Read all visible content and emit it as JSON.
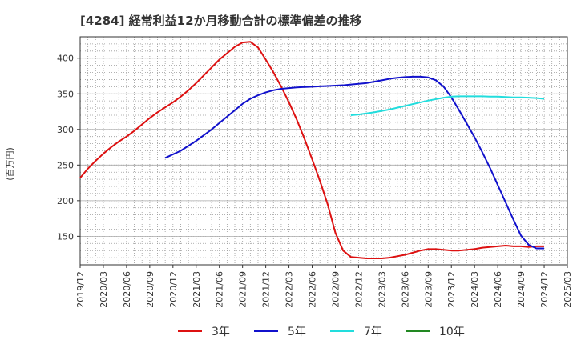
{
  "chart_data": {
    "type": "line",
    "title": "[4284]  経常利益12か月移動合計の標準偏差の推移",
    "ylabel": "(百万円)",
    "xlabel": "",
    "ylim": [
      110,
      430
    ],
    "yticks": [
      150,
      200,
      250,
      300,
      350,
      400
    ],
    "xticks": [
      "2019/12",
      "2020/03",
      "2020/06",
      "2020/09",
      "2020/12",
      "2021/03",
      "2021/06",
      "2021/09",
      "2021/12",
      "2022/03",
      "2022/06",
      "2022/09",
      "2022/12",
      "2023/03",
      "2023/06",
      "2023/09",
      "2023/12",
      "2024/03",
      "2024/06",
      "2024/09",
      "2024/12",
      "2025/03"
    ],
    "grid": true,
    "legend_position": "bottom",
    "series": [
      {
        "name": "3年",
        "color": "#dd1111",
        "points": [
          [
            "2019/12",
            232
          ],
          [
            "2020/01",
            245
          ],
          [
            "2020/02",
            256
          ],
          [
            "2020/03",
            266
          ],
          [
            "2020/04",
            275
          ],
          [
            "2020/05",
            283
          ],
          [
            "2020/06",
            290
          ],
          [
            "2020/07",
            298
          ],
          [
            "2020/08",
            307
          ],
          [
            "2020/09",
            316
          ],
          [
            "2020/10",
            324
          ],
          [
            "2020/11",
            331
          ],
          [
            "2020/12",
            338
          ],
          [
            "2021/01",
            346
          ],
          [
            "2021/02",
            355
          ],
          [
            "2021/03",
            365
          ],
          [
            "2021/04",
            376
          ],
          [
            "2021/05",
            387
          ],
          [
            "2021/06",
            398
          ],
          [
            "2021/07",
            407
          ],
          [
            "2021/08",
            416
          ],
          [
            "2021/09",
            422
          ],
          [
            "2021/10",
            423
          ],
          [
            "2021/11",
            415
          ],
          [
            "2021/12",
            398
          ],
          [
            "2022/01",
            380
          ],
          [
            "2022/02",
            360
          ],
          [
            "2022/03",
            338
          ],
          [
            "2022/04",
            314
          ],
          [
            "2022/05",
            287
          ],
          [
            "2022/06",
            258
          ],
          [
            "2022/07",
            228
          ],
          [
            "2022/08",
            195
          ],
          [
            "2022/09",
            155
          ],
          [
            "2022/10",
            130
          ],
          [
            "2022/11",
            121
          ],
          [
            "2022/12",
            120
          ],
          [
            "2023/01",
            119
          ],
          [
            "2023/02",
            119
          ],
          [
            "2023/03",
            119
          ],
          [
            "2023/04",
            120
          ],
          [
            "2023/05",
            122
          ],
          [
            "2023/06",
            124
          ],
          [
            "2023/07",
            127
          ],
          [
            "2023/08",
            130
          ],
          [
            "2023/09",
            132
          ],
          [
            "2023/10",
            132
          ],
          [
            "2023/11",
            131
          ],
          [
            "2023/12",
            130
          ],
          [
            "2024/01",
            130
          ],
          [
            "2024/02",
            131
          ],
          [
            "2024/03",
            132
          ],
          [
            "2024/04",
            134
          ],
          [
            "2024/05",
            135
          ],
          [
            "2024/06",
            136
          ],
          [
            "2024/07",
            137
          ],
          [
            "2024/08",
            136
          ],
          [
            "2024/09",
            136
          ],
          [
            "2024/10",
            135
          ],
          [
            "2024/11",
            136
          ],
          [
            "2024/12",
            136
          ]
        ]
      },
      {
        "name": "5年",
        "color": "#1111cc",
        "points": [
          [
            "2020/11",
            260
          ],
          [
            "2020/12",
            265
          ],
          [
            "2021/01",
            270
          ],
          [
            "2021/02",
            277
          ],
          [
            "2021/03",
            284
          ],
          [
            "2021/04",
            292
          ],
          [
            "2021/05",
            300
          ],
          [
            "2021/06",
            309
          ],
          [
            "2021/07",
            318
          ],
          [
            "2021/08",
            327
          ],
          [
            "2021/09",
            336
          ],
          [
            "2021/10",
            343
          ],
          [
            "2021/11",
            348
          ],
          [
            "2021/12",
            352
          ],
          [
            "2022/01",
            355
          ],
          [
            "2022/02",
            357
          ],
          [
            "2022/03",
            358
          ],
          [
            "2022/04",
            359
          ],
          [
            "2022/05",
            359.5
          ],
          [
            "2022/06",
            360
          ],
          [
            "2022/07",
            360.5
          ],
          [
            "2022/08",
            361
          ],
          [
            "2022/09",
            361.5
          ],
          [
            "2022/10",
            362
          ],
          [
            "2022/11",
            363
          ],
          [
            "2022/12",
            364
          ],
          [
            "2023/01",
            365
          ],
          [
            "2023/02",
            367
          ],
          [
            "2023/03",
            369
          ],
          [
            "2023/04",
            371
          ],
          [
            "2023/05",
            372.5
          ],
          [
            "2023/06",
            373.5
          ],
          [
            "2023/07",
            374
          ],
          [
            "2023/08",
            374
          ],
          [
            "2023/09",
            373
          ],
          [
            "2023/10",
            369
          ],
          [
            "2023/11",
            360
          ],
          [
            "2023/12",
            345
          ],
          [
            "2024/01",
            327
          ],
          [
            "2024/02",
            308
          ],
          [
            "2024/03",
            289
          ],
          [
            "2024/04",
            268
          ],
          [
            "2024/05",
            246
          ],
          [
            "2024/06",
            222
          ],
          [
            "2024/07",
            198
          ],
          [
            "2024/08",
            174
          ],
          [
            "2024/09",
            151
          ],
          [
            "2024/10",
            138
          ],
          [
            "2024/11",
            133
          ],
          [
            "2024/12",
            133
          ]
        ]
      },
      {
        "name": "7年",
        "color": "#22dddd",
        "points": [
          [
            "2022/11",
            320
          ],
          [
            "2022/12",
            321
          ],
          [
            "2023/01",
            322.5
          ],
          [
            "2023/02",
            324
          ],
          [
            "2023/03",
            326
          ],
          [
            "2023/04",
            328
          ],
          [
            "2023/05",
            330.5
          ],
          [
            "2023/06",
            333
          ],
          [
            "2023/07",
            335.5
          ],
          [
            "2023/08",
            338
          ],
          [
            "2023/09",
            340.5
          ],
          [
            "2023/10",
            342.5
          ],
          [
            "2023/11",
            344.5
          ],
          [
            "2023/12",
            346
          ],
          [
            "2024/01",
            346.5
          ],
          [
            "2024/02",
            346.5
          ],
          [
            "2024/03",
            346.5
          ],
          [
            "2024/04",
            346.5
          ],
          [
            "2024/05",
            346
          ],
          [
            "2024/06",
            346
          ],
          [
            "2024/07",
            345.5
          ],
          [
            "2024/08",
            345
          ],
          [
            "2024/09",
            345
          ],
          [
            "2024/10",
            344.5
          ],
          [
            "2024/11",
            344
          ],
          [
            "2024/12",
            343
          ]
        ]
      },
      {
        "name": "10年",
        "color": "#228822",
        "points": []
      }
    ]
  }
}
